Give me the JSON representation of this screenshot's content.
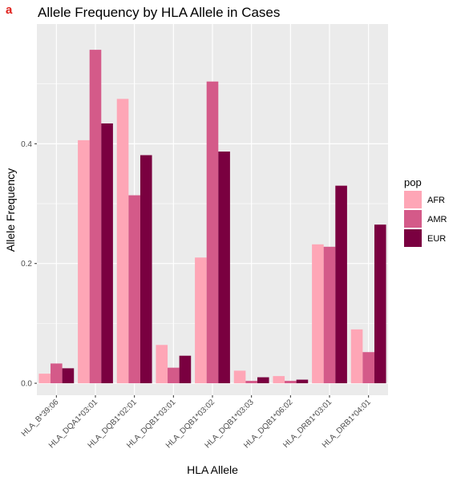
{
  "panel_label": "a",
  "chart_data": {
    "type": "bar",
    "title": "Allele Frequency by HLA Allele in Cases",
    "xlabel": "HLA Allele",
    "ylabel": "Allele Frequency",
    "ylim": [
      -0.02,
      0.6
    ],
    "yticks": [
      0.0,
      0.2,
      0.4
    ],
    "ytick_labels": [
      "0.0",
      "0.2",
      "0.4"
    ],
    "grid": true,
    "legend": {
      "title": "pop",
      "position": "right"
    },
    "categories": [
      "HLA_B*39:06",
      "HLA_DQA1*03:01",
      "HLA_DQB1*02:01",
      "HLA_DQB1*03:01",
      "HLA_DQB1*03:02",
      "HLA_DQB1*03:03",
      "HLA_DQB1*06:02",
      "HLA_DRB1*03:01",
      "HLA_DRB1*04:01"
    ],
    "series": [
      {
        "name": "AFR",
        "color": "#fea6b6",
        "values": [
          0.016,
          0.406,
          0.475,
          0.064,
          0.21,
          0.021,
          0.012,
          0.232,
          0.09
        ]
      },
      {
        "name": "AMR",
        "color": "#d45a89",
        "values": [
          0.033,
          0.557,
          0.314,
          0.026,
          0.504,
          0.004,
          0.004,
          0.228,
          0.052
        ]
      },
      {
        "name": "EUR",
        "color": "#7a0040",
        "values": [
          0.025,
          0.434,
          0.381,
          0.046,
          0.387,
          0.01,
          0.006,
          0.33,
          0.265
        ]
      }
    ]
  }
}
